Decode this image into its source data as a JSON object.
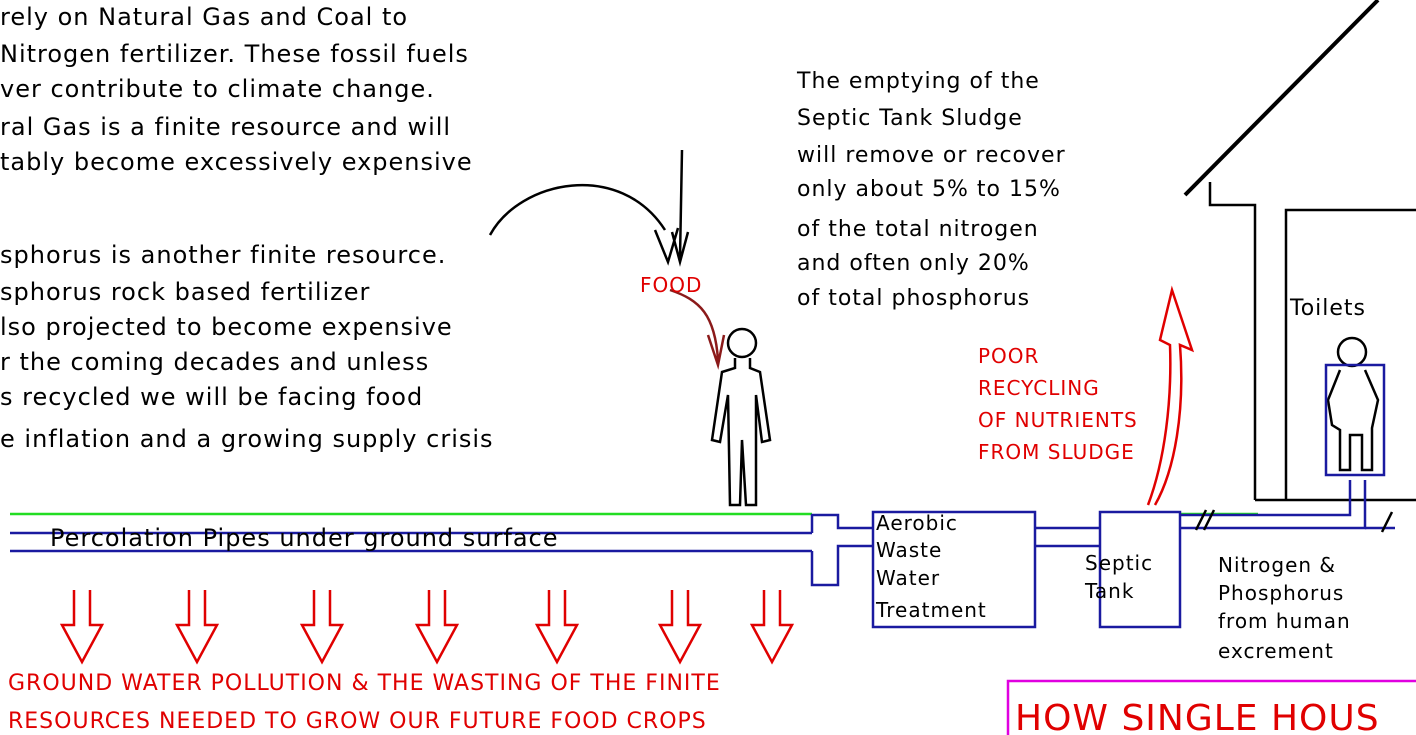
{
  "left_text": [
    "rely on Natural Gas and Coal to",
    "Nitrogen fertilizer. These fossil fuels",
    "ver contribute to climate change.",
    "ral Gas is a finite resource and will",
    "tably become excessively expensive",
    "sphorus is another finite resource.",
    "sphorus rock based fertilizer",
    "lso projected to become expensive",
    "r the coming decades and unless",
    "s recycled we will be facing food",
    "e inflation and a growing supply crisis"
  ],
  "food": "FOOD",
  "septic_note": [
    "The emptying of the",
    "Septic Tank Sludge",
    "will remove or recover",
    "only about 5% to 15%",
    "of the total nitrogen",
    "and often only 20%",
    "of total phosphorus"
  ],
  "poor_recycling": [
    "POOR",
    "RECYCLING",
    "OF NUTRIENTS",
    "FROM SLUDGE"
  ],
  "toilets": "Toilets",
  "percolation": "Percolation Pipes under ground surface",
  "aerobic": [
    "Aerobic",
    "Waste",
    "Water",
    "Treatment"
  ],
  "septic_tank": [
    "Septic",
    "Tank"
  ],
  "nitrogen_note": [
    "Nitrogen &",
    "Phosphorus",
    "from human",
    "excrement"
  ],
  "pollution": [
    "GROUND WATER POLLUTION & THE WASTING OF THE FINITE",
    "RESOURCES NEEDED TO GROW OUR FUTURE FOOD CROPS"
  ],
  "banner": "HOW SINGLE HOUS"
}
